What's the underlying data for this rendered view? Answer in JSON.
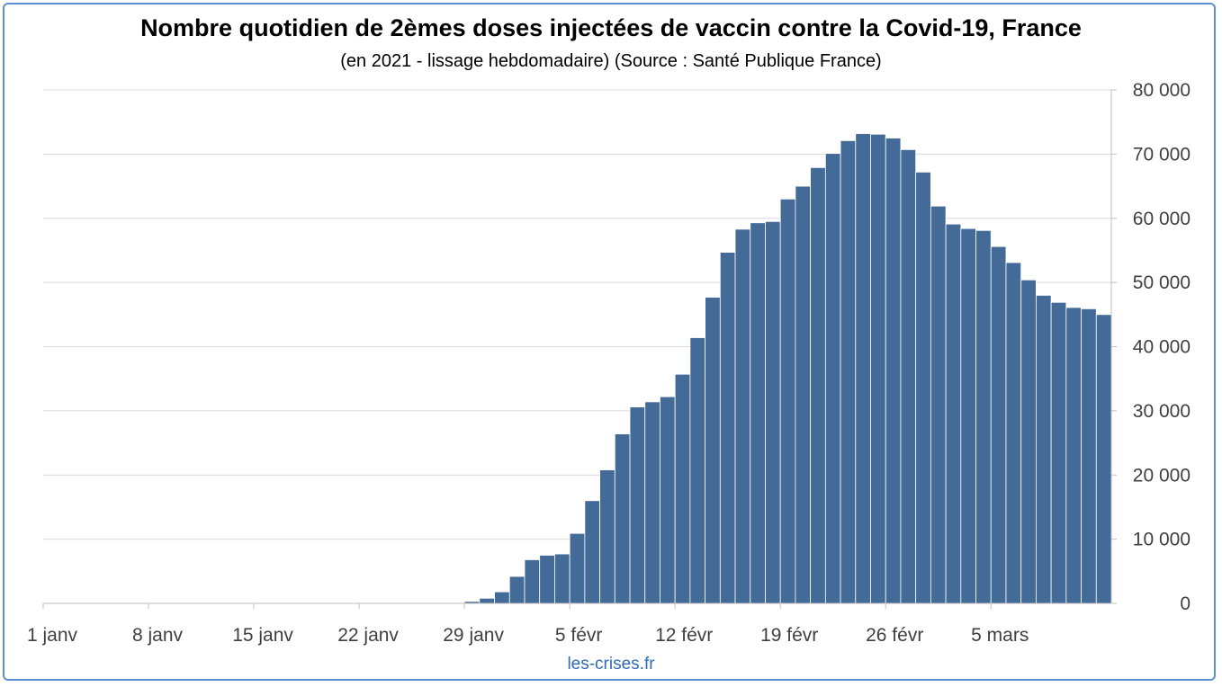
{
  "colors": {
    "bar": "#446a98",
    "bar_edge": "#ffffff",
    "grid": "#d9d9d9",
    "axis": "#bfbfbf",
    "frame": "#5b8fd6",
    "source_text": "#2e6db5"
  },
  "footer": {
    "source": "les-crises.fr"
  },
  "chart_data": {
    "type": "bar",
    "title": "Nombre quotidien de 2èmes doses injectées de vaccin contre la Covid-19, France",
    "subtitle": "(en 2021 - lissage hebdomadaire) (Source : Santé Publique France)",
    "xlabel": "",
    "ylabel": "",
    "ylim": [
      0,
      80000
    ],
    "y_axis_side": "right",
    "grid": true,
    "legend": "none",
    "x_tick_labels": [
      "1 janv",
      "8 janv",
      "15 janv",
      "22 janv",
      "29 janv",
      "5 févr",
      "12 févr",
      "19 févr",
      "26 févr",
      "5 mars"
    ],
    "x_tick_every": 7,
    "y_ticks": [
      0,
      10000,
      20000,
      30000,
      40000,
      50000,
      60000,
      70000,
      80000
    ],
    "y_tick_labels": [
      "0",
      "10 000",
      "20 000",
      "30 000",
      "40 000",
      "50 000",
      "60 000",
      "70 000",
      "80 000"
    ],
    "values": [
      0,
      0,
      0,
      0,
      0,
      0,
      0,
      0,
      0,
      0,
      0,
      0,
      0,
      0,
      0,
      0,
      0,
      0,
      0,
      0,
      0,
      0,
      0,
      0,
      0,
      0,
      0,
      0,
      300,
      800,
      1800,
      4200,
      6800,
      7500,
      7700,
      10900,
      16000,
      20800,
      26400,
      30600,
      31400,
      32200,
      35700,
      41400,
      47700,
      54700,
      58300,
      59300,
      59500,
      63000,
      65000,
      67900,
      70100,
      72100,
      73200,
      73100,
      72500,
      70700,
      67200,
      61900,
      59100,
      58400,
      58100,
      55600,
      53100,
      50400,
      48000,
      46900,
      46100,
      45900,
      45000
    ]
  }
}
